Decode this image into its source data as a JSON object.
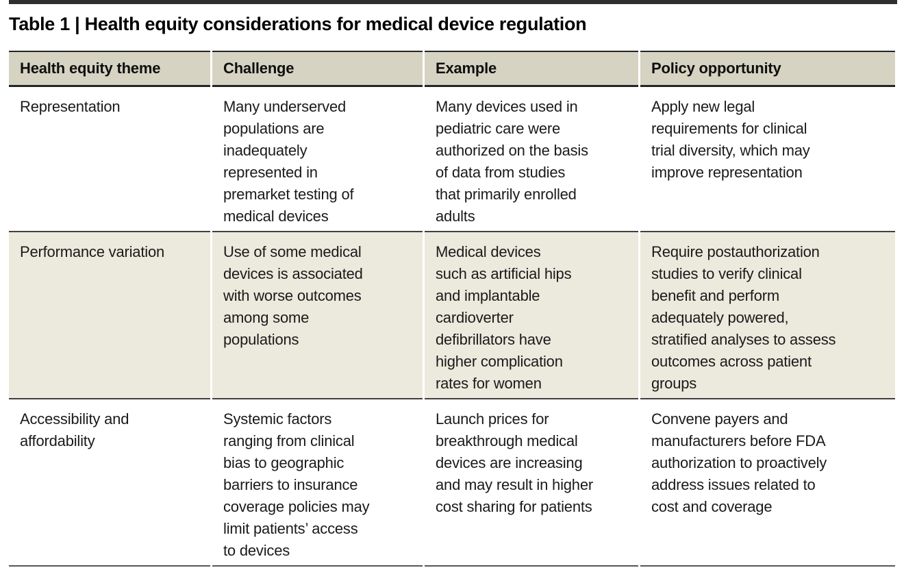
{
  "title": "Table 1 | Health equity considerations for medical device regulation",
  "table": {
    "columns": [
      "Health equity theme",
      "Challenge",
      "Example",
      "Policy opportunity"
    ],
    "rows": [
      {
        "theme": "Representation",
        "challenge": "Many underserved\npopulations are\ninadequately\nrepresented in\npremarket testing of\nmedical devices",
        "example": "Many devices used in\npediatric care were\nauthorized on the basis\nof data from studies\nthat primarily enrolled\nadults",
        "policy": "Apply new legal\nrequirements for clinical\ntrial diversity, which may\nimprove representation"
      },
      {
        "theme": "Performance variation",
        "challenge": "Use of some medical\ndevices is associated\nwith worse outcomes\namong some\npopulations",
        "example": "Medical devices\nsuch as artificial hips\nand implantable\ncardioverter\ndefibrillators have\nhigher complication\nrates for women",
        "policy": "Require postauthorization\nstudies to verify clinical\nbenefit and perform\nadequately powered,\nstratified analyses to assess\noutcomes across patient\ngroups"
      },
      {
        "theme": "Accessibility and\naffordability",
        "challenge": "Systemic factors\nranging from clinical\nbias to geographic\nbarriers to insurance\ncoverage policies may\nlimit patients’ access\nto devices",
        "example": "Launch prices for\nbreakthrough medical\ndevices are increasing\nand may result in higher\ncost sharing for patients",
        "policy": "Convene payers and\nmanufacturers before FDA\nauthorization to proactively\naddress issues related to\ncost and coverage"
      }
    ]
  },
  "colors": {
    "header_background": "#d6d3c2",
    "shaded_row_background": "#ece9dd",
    "dark_rule": "#242424",
    "row_rule": "#3f3f3f",
    "bottom_rule": "#565656",
    "text": "#1a1a1a"
  }
}
